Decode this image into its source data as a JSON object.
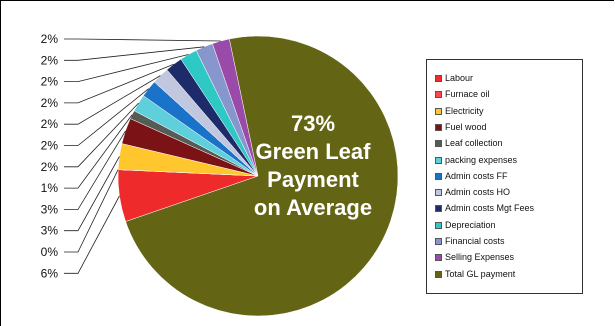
{
  "chart_data": {
    "type": "pie",
    "title": "",
    "labels": [
      "Labour",
      "Furnace oil",
      "Electricity",
      "Fuel wood",
      "Leaf collection",
      "packing expenses",
      "Admin costs FF",
      "Admin costs HO",
      "Admin costs Mgt Fees",
      "Depreciation",
      "Financial costs",
      "Selling Expenses",
      "Total GL payment"
    ],
    "values": [
      6,
      0,
      3,
      3,
      1,
      2,
      2,
      2,
      2,
      2,
      2,
      2,
      73
    ],
    "value_labels": [
      "6%",
      "0%",
      "3%",
      "3%",
      "1%",
      "2%",
      "2%",
      "2%",
      "2%",
      "2%",
      "2%",
      "2%",
      "73%"
    ],
    "colors": [
      "#ee2a2a",
      "#f7484b",
      "#ffc62e",
      "#7b1216",
      "#555b55",
      "#5fcfdc",
      "#1b72c9",
      "#c2c7e0",
      "#1e2b6a",
      "#2ec8c5",
      "#8896ce",
      "#9a4aa8",
      "#636414"
    ],
    "center_label": [
      "73%",
      "Green Leaf",
      "Payment",
      "on Average"
    ],
    "legend_position": "right"
  }
}
